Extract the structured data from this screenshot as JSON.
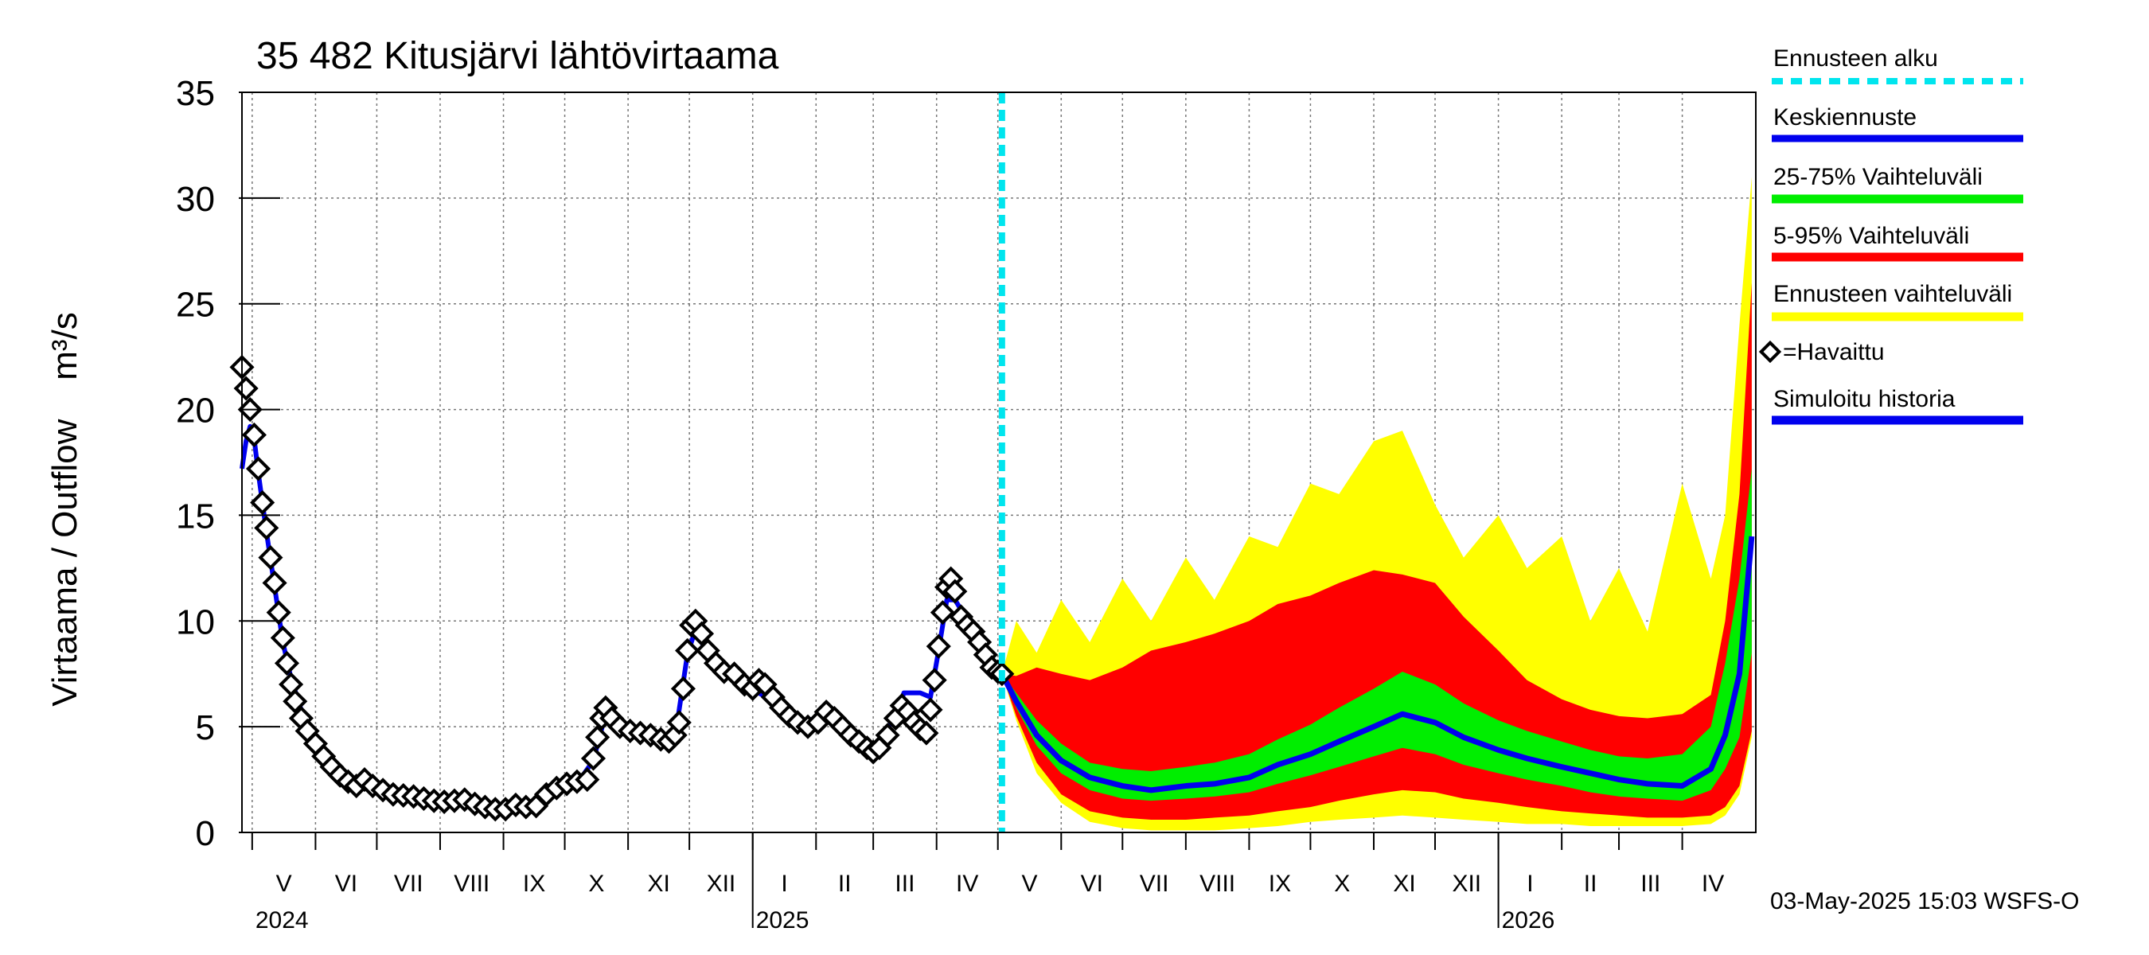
{
  "chart_data": {
    "type": "area",
    "title": "35 482 Kitusjärvi lähtövirtaama",
    "ylabel": "Virtaama / Outflow    m³/s",
    "ylim": [
      0,
      35
    ],
    "yticks": [
      0,
      5,
      10,
      15,
      20,
      25,
      30,
      35
    ],
    "grid": true,
    "legend_position": "right",
    "x_start": "2024-04-26",
    "x_end": "2026-05-07",
    "forecast_start": "2025-05-03",
    "months": [
      {
        "label": "V",
        "start": "2024-05-01",
        "end": "2024-06-01"
      },
      {
        "label": "VI",
        "start": "2024-06-01",
        "end": "2024-07-01"
      },
      {
        "label": "VII",
        "start": "2024-07-01",
        "end": "2024-08-01"
      },
      {
        "label": "VIII",
        "start": "2024-08-01",
        "end": "2024-09-01"
      },
      {
        "label": "IX",
        "start": "2024-09-01",
        "end": "2024-10-01"
      },
      {
        "label": "X",
        "start": "2024-10-01",
        "end": "2024-11-01"
      },
      {
        "label": "XI",
        "start": "2024-11-01",
        "end": "2024-12-01"
      },
      {
        "label": "XII",
        "start": "2024-12-01",
        "end": "2025-01-01"
      },
      {
        "label": "I",
        "start": "2025-01-01",
        "end": "2025-02-01"
      },
      {
        "label": "II",
        "start": "2025-02-01",
        "end": "2025-03-01"
      },
      {
        "label": "III",
        "start": "2025-03-01",
        "end": "2025-04-01"
      },
      {
        "label": "IV",
        "start": "2025-04-01",
        "end": "2025-05-01"
      },
      {
        "label": "V",
        "start": "2025-05-01",
        "end": "2025-06-01"
      },
      {
        "label": "VI",
        "start": "2025-06-01",
        "end": "2025-07-01"
      },
      {
        "label": "VII",
        "start": "2025-07-01",
        "end": "2025-08-01"
      },
      {
        "label": "VIII",
        "start": "2025-08-01",
        "end": "2025-09-01"
      },
      {
        "label": "IX",
        "start": "2025-09-01",
        "end": "2025-10-01"
      },
      {
        "label": "X",
        "start": "2025-10-01",
        "end": "2025-11-01"
      },
      {
        "label": "XI",
        "start": "2025-11-01",
        "end": "2025-12-01"
      },
      {
        "label": "XII",
        "start": "2025-12-01",
        "end": "2026-01-01"
      },
      {
        "label": "I",
        "start": "2026-01-01",
        "end": "2026-02-01"
      },
      {
        "label": "II",
        "start": "2026-02-01",
        "end": "2026-03-01"
      },
      {
        "label": "III",
        "start": "2026-03-01",
        "end": "2026-04-01"
      },
      {
        "label": "IV",
        "start": "2026-04-01",
        "end": "2026-05-01"
      }
    ],
    "years": [
      {
        "label": "2024",
        "date": "2024-05-01"
      },
      {
        "label": "2025",
        "date": "2025-01-01"
      },
      {
        "label": "2026",
        "date": "2026-01-01"
      }
    ],
    "colors": {
      "forecast_start": "#00e5ee",
      "median": "#0000ee",
      "p25_75": "#00ee00",
      "p5_95": "#ff0000",
      "range": "#ffff00",
      "observed": "#000000",
      "simulated": "#0000ee"
    },
    "observed": {
      "name": "=Havaittu",
      "points": [
        [
          "2024-04-26",
          22.0
        ],
        [
          "2024-04-28",
          21.0
        ],
        [
          "2024-04-30",
          20.0
        ],
        [
          "2024-05-02",
          18.8
        ],
        [
          "2024-05-04",
          17.2
        ],
        [
          "2024-05-06",
          15.6
        ],
        [
          "2024-05-08",
          14.4
        ],
        [
          "2024-05-10",
          13.0
        ],
        [
          "2024-05-12",
          11.8
        ],
        [
          "2024-05-14",
          10.4
        ],
        [
          "2024-05-16",
          9.2
        ],
        [
          "2024-05-18",
          8.0
        ],
        [
          "2024-05-20",
          7.0
        ],
        [
          "2024-05-22",
          6.2
        ],
        [
          "2024-05-25",
          5.4
        ],
        [
          "2024-05-28",
          4.8
        ],
        [
          "2024-06-01",
          4.2
        ],
        [
          "2024-06-05",
          3.6
        ],
        [
          "2024-06-09",
          3.1
        ],
        [
          "2024-06-13",
          2.7
        ],
        [
          "2024-06-17",
          2.4
        ],
        [
          "2024-06-21",
          2.2
        ],
        [
          "2024-06-25",
          2.5
        ],
        [
          "2024-06-29",
          2.2
        ],
        [
          "2024-07-04",
          2.0
        ],
        [
          "2024-07-09",
          1.8
        ],
        [
          "2024-07-14",
          1.75
        ],
        [
          "2024-07-19",
          1.7
        ],
        [
          "2024-07-24",
          1.6
        ],
        [
          "2024-07-29",
          1.5
        ],
        [
          "2024-08-03",
          1.45
        ],
        [
          "2024-08-08",
          1.5
        ],
        [
          "2024-08-13",
          1.55
        ],
        [
          "2024-08-18",
          1.35
        ],
        [
          "2024-08-23",
          1.2
        ],
        [
          "2024-08-28",
          1.1
        ],
        [
          "2024-09-02",
          1.1
        ],
        [
          "2024-09-07",
          1.3
        ],
        [
          "2024-09-12",
          1.2
        ],
        [
          "2024-09-17",
          1.25
        ],
        [
          "2024-09-22",
          1.8
        ],
        [
          "2024-09-27",
          2.1
        ],
        [
          "2024-10-02",
          2.3
        ],
        [
          "2024-10-07",
          2.4
        ],
        [
          "2024-10-12",
          2.5
        ],
        [
          "2024-10-15",
          3.5
        ],
        [
          "2024-10-17",
          4.5
        ],
        [
          "2024-10-19",
          5.4
        ],
        [
          "2024-10-21",
          5.9
        ],
        [
          "2024-10-24",
          5.4
        ],
        [
          "2024-10-28",
          5.0
        ],
        [
          "2024-11-02",
          4.8
        ],
        [
          "2024-11-07",
          4.7
        ],
        [
          "2024-11-12",
          4.6
        ],
        [
          "2024-11-17",
          4.4
        ],
        [
          "2024-11-21",
          4.3
        ],
        [
          "2024-11-24",
          4.6
        ],
        [
          "2024-11-26",
          5.2
        ],
        [
          "2024-11-28",
          6.8
        ],
        [
          "2024-11-30",
          8.6
        ],
        [
          "2024-12-02",
          9.8
        ],
        [
          "2024-12-04",
          10.0
        ],
        [
          "2024-12-07",
          9.4
        ],
        [
          "2024-12-10",
          8.6
        ],
        [
          "2024-12-14",
          8.0
        ],
        [
          "2024-12-18",
          7.6
        ],
        [
          "2024-12-23",
          7.5
        ],
        [
          "2024-12-28",
          7.0
        ],
        [
          "2025-01-01",
          6.8
        ],
        [
          "2025-01-04",
          7.2
        ],
        [
          "2025-01-07",
          7.0
        ],
        [
          "2025-01-11",
          6.4
        ],
        [
          "2025-01-15",
          5.9
        ],
        [
          "2025-01-19",
          5.5
        ],
        [
          "2025-01-23",
          5.2
        ],
        [
          "2025-01-28",
          5.0
        ],
        [
          "2025-02-02",
          5.2
        ],
        [
          "2025-02-06",
          5.7
        ],
        [
          "2025-02-10",
          5.4
        ],
        [
          "2025-02-14",
          5.0
        ],
        [
          "2025-02-18",
          4.6
        ],
        [
          "2025-02-22",
          4.3
        ],
        [
          "2025-02-26",
          4.0
        ],
        [
          "2025-03-01",
          3.8
        ],
        [
          "2025-03-04",
          4.0
        ],
        [
          "2025-03-08",
          4.6
        ],
        [
          "2025-03-12",
          5.4
        ],
        [
          "2025-03-15",
          6.0
        ],
        [
          "2025-03-18",
          5.7
        ],
        [
          "2025-03-21",
          5.2
        ],
        [
          "2025-03-24",
          4.9
        ],
        [
          "2025-03-27",
          4.7
        ],
        [
          "2025-03-29",
          5.8
        ],
        [
          "2025-03-31",
          7.2
        ],
        [
          "2025-04-02",
          8.8
        ],
        [
          "2025-04-04",
          10.4
        ],
        [
          "2025-04-06",
          11.6
        ],
        [
          "2025-04-08",
          12.0
        ],
        [
          "2025-04-10",
          11.4
        ],
        [
          "2025-04-13",
          10.2
        ],
        [
          "2025-04-16",
          9.8
        ],
        [
          "2025-04-19",
          9.5
        ],
        [
          "2025-04-22",
          9.0
        ],
        [
          "2025-04-25",
          8.4
        ],
        [
          "2025-04-28",
          7.8
        ],
        [
          "2025-05-01",
          7.6
        ],
        [
          "2025-05-03",
          7.5
        ]
      ]
    },
    "simulated": {
      "name": "Simuloitu historia",
      "points": [
        [
          "2024-04-26",
          17.2
        ],
        [
          "2024-04-28",
          18.5
        ],
        [
          "2024-04-30",
          19.2
        ],
        [
          "2024-05-02",
          18.6
        ],
        [
          "2024-05-04",
          17.0
        ],
        [
          "2024-05-08",
          14.2
        ],
        [
          "2024-05-12",
          11.6
        ],
        [
          "2024-05-16",
          9.0
        ],
        [
          "2024-05-20",
          7.3
        ],
        [
          "2024-05-25",
          5.8
        ],
        [
          "2024-06-01",
          4.4
        ],
        [
          "2024-06-09",
          3.3
        ],
        [
          "2024-06-17",
          2.5
        ],
        [
          "2024-06-25",
          2.4
        ],
        [
          "2024-07-09",
          1.9
        ],
        [
          "2024-07-24",
          1.6
        ],
        [
          "2024-08-08",
          1.5
        ],
        [
          "2024-08-23",
          1.2
        ],
        [
          "2024-09-07",
          1.2
        ],
        [
          "2024-09-22",
          1.7
        ],
        [
          "2024-10-07",
          2.3
        ],
        [
          "2024-10-15",
          3.4
        ],
        [
          "2024-10-21",
          5.6
        ],
        [
          "2024-10-28",
          5.0
        ],
        [
          "2024-11-12",
          4.6
        ],
        [
          "2024-11-24",
          4.5
        ],
        [
          "2024-11-30",
          8.4
        ],
        [
          "2024-12-04",
          9.6
        ],
        [
          "2024-12-10",
          8.4
        ],
        [
          "2024-12-23",
          7.3
        ],
        [
          "2025-01-04",
          6.6
        ],
        [
          "2025-01-11",
          6.2
        ],
        [
          "2025-01-23",
          5.2
        ],
        [
          "2025-02-06",
          5.5
        ],
        [
          "2025-02-18",
          4.6
        ],
        [
          "2025-03-01",
          3.9
        ],
        [
          "2025-03-12",
          5.5
        ],
        [
          "2025-03-16",
          6.6
        ],
        [
          "2025-03-24",
          6.6
        ],
        [
          "2025-03-29",
          6.4
        ],
        [
          "2025-04-02",
          8.6
        ],
        [
          "2025-04-06",
          11.0
        ],
        [
          "2025-04-10",
          11.0
        ],
        [
          "2025-04-19",
          9.6
        ],
        [
          "2025-04-28",
          8.0
        ],
        [
          "2025-05-03",
          7.6
        ]
      ]
    },
    "forecast": {
      "x": [
        "2025-05-03",
        "2025-05-10",
        "2025-05-20",
        "2025-06-01",
        "2025-06-15",
        "2025-07-01",
        "2025-07-15",
        "2025-08-01",
        "2025-08-15",
        "2025-09-01",
        "2025-09-15",
        "2025-10-01",
        "2025-10-15",
        "2025-11-01",
        "2025-11-15",
        "2025-12-01",
        "2025-12-15",
        "2026-01-01",
        "2026-01-15",
        "2026-02-01",
        "2026-02-15",
        "2026-03-01",
        "2026-03-15",
        "2026-04-01",
        "2026-04-15",
        "2026-04-22",
        "2026-04-29",
        "2026-05-05"
      ],
      "median": [
        7.5,
        6.2,
        4.6,
        3.4,
        2.6,
        2.2,
        2.0,
        2.2,
        2.3,
        2.6,
        3.2,
        3.7,
        4.3,
        5.0,
        5.6,
        5.2,
        4.5,
        3.9,
        3.5,
        3.1,
        2.8,
        2.5,
        2.3,
        2.2,
        3.0,
        4.6,
        7.5,
        14.0
      ],
      "p25": [
        7.5,
        5.9,
        4.1,
        2.8,
        2.0,
        1.6,
        1.5,
        1.6,
        1.7,
        1.9,
        2.3,
        2.7,
        3.1,
        3.6,
        4.0,
        3.7,
        3.2,
        2.8,
        2.5,
        2.2,
        1.9,
        1.7,
        1.6,
        1.5,
        2.0,
        3.0,
        4.5,
        8.5
      ],
      "p75": [
        7.5,
        6.6,
        5.3,
        4.2,
        3.3,
        3.0,
        2.9,
        3.1,
        3.3,
        3.7,
        4.4,
        5.1,
        5.9,
        6.8,
        7.6,
        7.0,
        6.1,
        5.3,
        4.8,
        4.3,
        3.9,
        3.6,
        3.5,
        3.7,
        5.0,
        8.0,
        12.0,
        17.2
      ],
      "p5": [
        7.5,
        5.5,
        3.3,
        1.8,
        1.0,
        0.7,
        0.6,
        0.6,
        0.7,
        0.8,
        1.0,
        1.2,
        1.5,
        1.8,
        2.0,
        1.9,
        1.6,
        1.4,
        1.2,
        1.0,
        0.9,
        0.8,
        0.7,
        0.7,
        0.8,
        1.2,
        2.2,
        4.8
      ],
      "p95": [
        7.5,
        7.4,
        7.8,
        7.5,
        7.2,
        7.8,
        8.6,
        9.0,
        9.4,
        10.0,
        10.8,
        11.2,
        11.8,
        12.4,
        12.2,
        11.8,
        10.2,
        8.6,
        7.2,
        6.3,
        5.8,
        5.5,
        5.4,
        5.6,
        6.5,
        10.0,
        16.0,
        26.0
      ],
      "min": [
        7.5,
        5.3,
        2.8,
        1.4,
        0.5,
        0.2,
        0.1,
        0.1,
        0.1,
        0.2,
        0.3,
        0.5,
        0.6,
        0.7,
        0.8,
        0.7,
        0.6,
        0.5,
        0.4,
        0.4,
        0.3,
        0.3,
        0.3,
        0.3,
        0.4,
        0.8,
        1.8,
        4.5
      ],
      "max": [
        7.5,
        10.0,
        8.5,
        11.0,
        9.0,
        12.0,
        10.0,
        13.0,
        11.0,
        14.0,
        13.5,
        16.5,
        16.0,
        18.5,
        19.0,
        15.5,
        13.0,
        15.0,
        12.5,
        14.0,
        10.0,
        12.5,
        9.5,
        16.5,
        12.0,
        15.0,
        24.0,
        31.0
      ]
    }
  },
  "legend": {
    "forecast_start": "Ennusteen alku",
    "median": "Keskiennuste",
    "p25_75": "25-75% Vaihteluväli",
    "p5_95": "5-95% Vaihteluväli",
    "range": "Ennusteen vaihteluväli",
    "observed": "=Havaittu",
    "simulated": "Simuloitu historia"
  },
  "footer": "03-May-2025 15:03 WSFS-O"
}
